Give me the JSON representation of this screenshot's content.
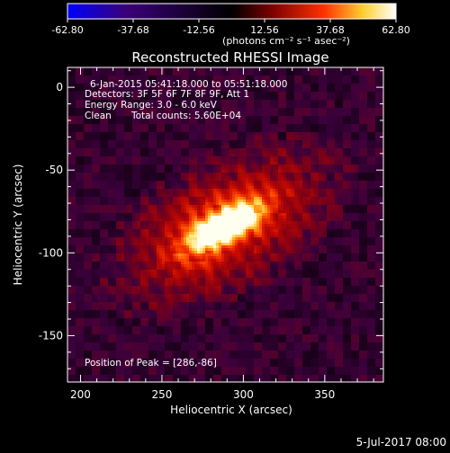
{
  "chart_data": {
    "type": "heatmap",
    "title": "Reconstructed RHESSI Image",
    "xlabel": "Heliocentric X (arcsec)",
    "ylabel": "Heliocentric Y (arcsec)",
    "xlim": [
      192,
      386
    ],
    "ylim": [
      -178,
      12
    ],
    "x_ticks": [
      200,
      250,
      300,
      350
    ],
    "y_ticks": [
      0,
      -50,
      -100,
      -150
    ],
    "colorbar": {
      "ticks": [
        "-62.80",
        "-37.68",
        "-12.56",
        "12.56",
        "37.68",
        "62.80"
      ],
      "range": [
        -62.8,
        62.8
      ],
      "unit_text": "(photons cm⁻² s⁻¹ asec⁻²)",
      "colors": [
        "#0000ff",
        "#3a0078",
        "#000000",
        "#7a0000",
        "#ff3000",
        "#ffd030",
        "#ffffff"
      ]
    },
    "annotations": [
      "6-Jan-2015 05:41:18.000 to 05:51:18.000",
      "Detectors: 3F 5F 6F 7F 8F 9F, Att 1",
      "Energy Range: 3.0 - 6.0 keV",
      "Clean",
      "Total counts: 5.60E+04",
      "Position of Peak = [286,-86]"
    ],
    "peak": {
      "x": 286,
      "y": -86
    },
    "source": {
      "center_x": 288,
      "center_y": -84,
      "major_axis_arcsec": 58,
      "minor_axis_arcsec": 22,
      "angle_deg": 28,
      "peak_value": 62.8
    },
    "footer_date": "5-Jul-2017 08:00"
  }
}
